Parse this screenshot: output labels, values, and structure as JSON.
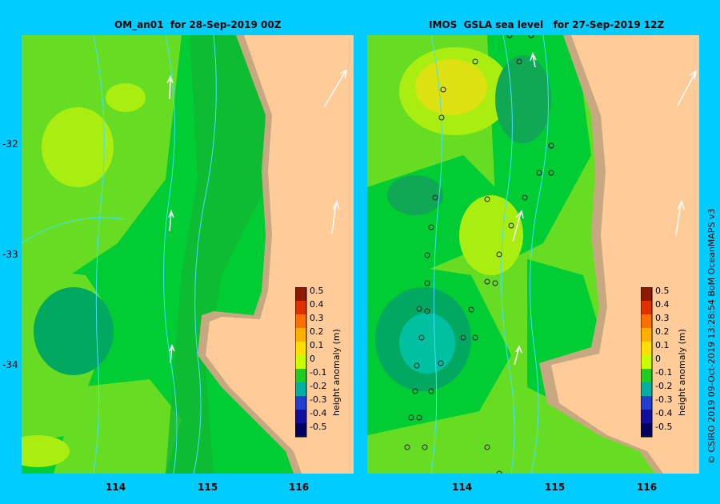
{
  "maps": [
    {
      "title": "OM_an01  for 28-Sep-2019 00Z"
    },
    {
      "title": "IMOS  GSLA sea level   for 27-Sep-2019 12Z"
    }
  ],
  "lat_labels": [
    "-32",
    "-33",
    "-34"
  ],
  "lon_labels": [
    "114",
    "115",
    "116"
  ],
  "colorbar": {
    "label": "height anomaly  (m)",
    "ticks": [
      "0.5",
      "0.4",
      "0.3",
      "0.2",
      "0.1",
      "0",
      "-0.1",
      "-0.2",
      "-0.3",
      "-0.4",
      "-0.5"
    ],
    "colors": [
      "#8b1a00",
      "#e03000",
      "#ff7000",
      "#ffb000",
      "#ffe000",
      "#c8ff00",
      "#20cc20",
      "#10a050",
      "#00b0a0",
      "#2040d0",
      "#1010a0",
      "#000060"
    ]
  },
  "credit": "© CSIRO 2019   09-Oct-2019 13:28:54 BoM OceanMAPS v3",
  "colors": {
    "background": "#00ccff",
    "land": "#ffcc99",
    "shelf": "#c8a880",
    "current": "#40e0ff"
  }
}
